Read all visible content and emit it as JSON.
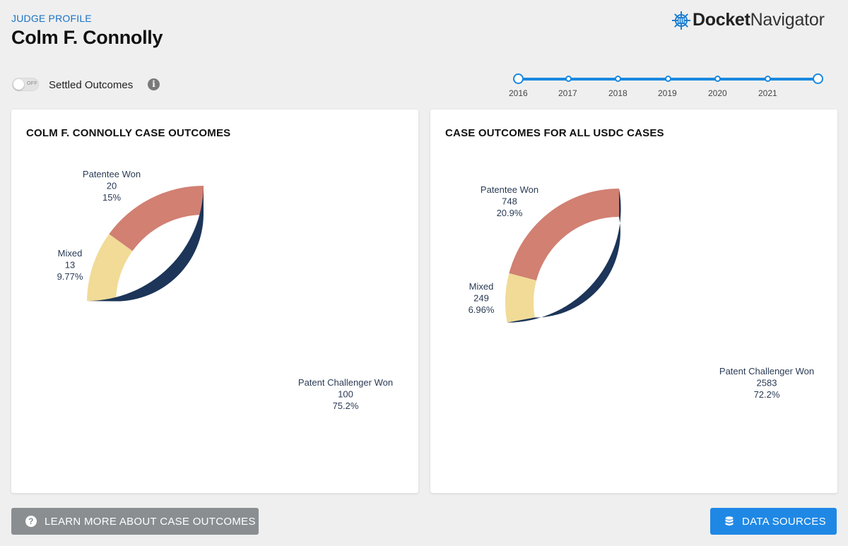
{
  "header": {
    "kicker": "JUDGE PROFILE",
    "judge_name": "Colm F. Connolly",
    "logo": {
      "bold": "Docket",
      "light": "Navigator"
    }
  },
  "controls": {
    "toggle_state": "OFF",
    "toggle_label": "Settled Outcomes",
    "info_glyph": "i",
    "timeline_years": [
      "2016",
      "2017",
      "2018",
      "2019",
      "2020",
      "2021"
    ]
  },
  "colors": {
    "challenger": "#1c3559",
    "patentee": "#d18072",
    "mixed": "#f1db97",
    "accent": "#1a88e0"
  },
  "chart_data": [
    {
      "type": "pie",
      "title": "COLM F. CONNOLLY CASE OUTCOMES",
      "hole": true,
      "slices": [
        {
          "label": "Patentee Won",
          "value": 20,
          "percent": "15%"
        },
        {
          "label": "Mixed",
          "value": 13,
          "percent": "9.77%"
        },
        {
          "label": "Patent Challenger Won",
          "value": 100,
          "percent": "75.2%"
        }
      ]
    },
    {
      "type": "pie",
      "title": "CASE OUTCOMES FOR ALL USDC CASES",
      "hole": true,
      "slices": [
        {
          "label": "Patentee Won",
          "value": 748,
          "percent": "20.9%"
        },
        {
          "label": "Mixed",
          "value": 249,
          "percent": "6.96%"
        },
        {
          "label": "Patent Challenger Won",
          "value": 2583,
          "percent": "72.2%"
        }
      ]
    }
  ],
  "footer": {
    "learn_button": "LEARN MORE ABOUT CASE OUTCOMES",
    "learn_glyph": "?",
    "data_button": "DATA SOURCES"
  }
}
